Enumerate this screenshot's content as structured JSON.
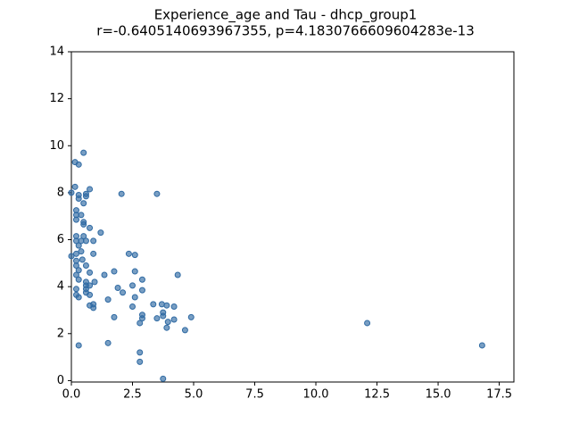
{
  "chart_data": {
    "type": "scatter",
    "title": "Experience_age and Tau - dhcp_group1",
    "subtitle": "r=-0.6405140693967355, p=4.1830766609604283e-13",
    "color": "#2f6aa3",
    "xlim": [
      0,
      18.1
    ],
    "ylim": [
      -0.06,
      14
    ],
    "xticks": [
      {
        "value": 0,
        "label": "0.0"
      },
      2.5,
      {
        "value": 5,
        "label": "5.0"
      },
      7.5,
      {
        "value": 10,
        "label": "10.0"
      },
      12.5,
      {
        "value": 15,
        "label": "15.0"
      },
      17.5
    ],
    "yticks": [
      0,
      2,
      4,
      6,
      8,
      10,
      12,
      14
    ],
    "x": [
      0,
      0,
      0.15,
      0.3,
      0.5,
      0.15,
      0.3,
      0.3,
      0.6,
      0.6,
      0.75,
      2.05,
      3.5,
      0.5,
      0.2,
      0.2,
      0.4,
      0.2,
      0.5,
      0.5,
      0.75,
      1.2,
      0.2,
      0.5,
      0.2,
      0.4,
      0.6,
      0.9,
      0.3,
      0.4,
      0.2,
      0.9,
      2.35,
      2.6,
      0.2,
      0.45,
      0.2,
      0.6,
      0.3,
      0.75,
      1.75,
      2.6,
      4.35,
      0.2,
      1.35,
      0.3,
      0.6,
      0.95,
      2.9,
      0.6,
      0.75,
      2.5,
      0.2,
      0.6,
      1.9,
      2.9,
      0.6,
      0.75,
      2.1,
      0.2,
      0.3,
      2.6,
      1.5,
      0.9,
      0.75,
      0.9,
      3.35,
      3.7,
      3.9,
      4.2,
      2.5,
      3.75,
      3.75,
      2.9,
      2.9,
      1.75,
      4.9,
      4.2,
      3.5,
      2.8,
      3.95,
      3.9,
      4.65,
      12.1,
      16.8,
      0.3,
      1.5,
      2.8,
      2.8,
      3.75
    ],
    "y": [
      8.0,
      5.3,
      9.3,
      9.2,
      9.7,
      8.25,
      7.9,
      7.75,
      7.95,
      7.85,
      8.15,
      7.95,
      7.95,
      7.55,
      7.25,
      7.05,
      7.05,
      6.85,
      6.75,
      6.65,
      6.5,
      6.3,
      6.15,
      6.15,
      5.95,
      5.95,
      5.95,
      5.95,
      5.75,
      5.5,
      5.4,
      5.4,
      5.4,
      5.35,
      5.1,
      5.15,
      4.9,
      4.9,
      4.7,
      4.6,
      4.65,
      4.65,
      4.5,
      4.5,
      4.5,
      4.3,
      4.2,
      4.2,
      4.3,
      4.05,
      4.05,
      4.05,
      3.9,
      3.9,
      3.95,
      3.85,
      3.75,
      3.65,
      3.75,
      3.65,
      3.55,
      3.55,
      3.45,
      3.25,
      3.2,
      3.1,
      3.25,
      3.25,
      3.2,
      3.15,
      3.15,
      2.9,
      2.75,
      2.8,
      2.65,
      2.7,
      2.7,
      2.6,
      2.65,
      2.45,
      2.5,
      2.25,
      2.15,
      2.45,
      1.5,
      1.5,
      1.6,
      1.2,
      0.8,
      0.08
    ]
  }
}
